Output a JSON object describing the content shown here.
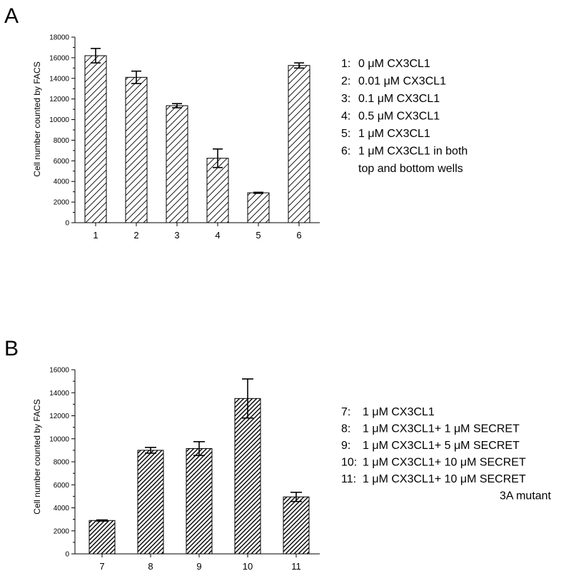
{
  "panels": [
    {
      "letter": "A",
      "chart_data": {
        "type": "bar",
        "title": "",
        "xlabel": "",
        "ylabel": "Cell number counted by FACS",
        "ylim": [
          0,
          18000
        ],
        "yticks": [
          0,
          2000,
          4000,
          6000,
          8000,
          10000,
          12000,
          14000,
          16000,
          18000
        ],
        "categories": [
          "1",
          "2",
          "3",
          "4",
          "5",
          "6"
        ],
        "values": [
          16200,
          14100,
          11350,
          6250,
          2900,
          15250
        ],
        "errors": [
          700,
          600,
          200,
          900,
          50,
          250
        ],
        "pattern": "hatch-sparse",
        "legend_position": "right",
        "legend": [
          {
            "id": "1:",
            "text": "0 μM CX3CL1"
          },
          {
            "id": "2:",
            "text": "0.01 μM CX3CL1"
          },
          {
            "id": "3:",
            "text": "0.1 μM CX3CL1"
          },
          {
            "id": "4:",
            "text": "0.5 μM CX3CL1"
          },
          {
            "id": "5:",
            "text": "1 μM CX3CL1"
          },
          {
            "id": "6:",
            "text": "1 μM CX3CL1 in both"
          },
          {
            "id": "",
            "text": "top and bottom wells"
          }
        ]
      }
    },
    {
      "letter": "B",
      "chart_data": {
        "type": "bar",
        "title": "",
        "xlabel": "",
        "ylabel": "Cell number counted by FACS",
        "ylim": [
          0,
          16000
        ],
        "yticks": [
          0,
          2000,
          4000,
          6000,
          8000,
          10000,
          12000,
          14000,
          16000
        ],
        "categories": [
          "7",
          "8",
          "9",
          "10",
          "11"
        ],
        "values": [
          2900,
          9000,
          9150,
          13500,
          4950
        ],
        "errors": [
          50,
          250,
          600,
          1700,
          400
        ],
        "pattern": "hatch-dense",
        "legend_position": "right",
        "legend": [
          {
            "id": "7:",
            "text": "1 μM CX3CL1"
          },
          {
            "id": "8:",
            "text": "1 μM CX3CL1+ 1 μM SECRET"
          },
          {
            "id": "9:",
            "text": "1 μM CX3CL1+ 5 μM SECRET"
          },
          {
            "id": "10:",
            "text": "1 μM CX3CL1+ 10 μM SECRET"
          },
          {
            "id": "11:",
            "text": "1 μM CX3CL1+ 10 μM SECRET"
          },
          {
            "id": "",
            "text": "3A mutant"
          }
        ]
      }
    }
  ]
}
